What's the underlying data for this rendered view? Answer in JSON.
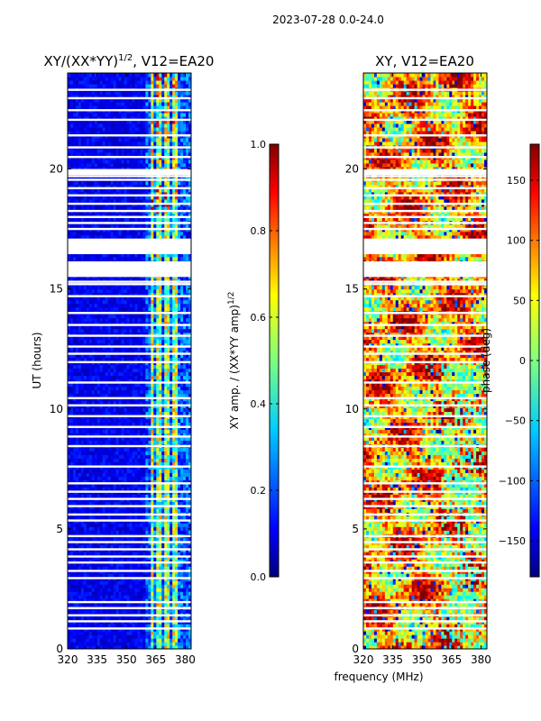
{
  "figure": {
    "suptitle": "2023-07-28 0.0-24.0",
    "xlabel": "frequency (MHz)"
  },
  "chart_data": [
    {
      "type": "heatmap",
      "title_main": "XY/(XX*YY)",
      "title_sup": "1/2",
      "title_rest": ", V12=EA20",
      "xlabel": "",
      "ylabel": "UT (hours)",
      "x_ticks": [
        "320",
        "335",
        "350",
        "365",
        "380"
      ],
      "x_tick_values": [
        320,
        335,
        350,
        365,
        380
      ],
      "y_ticks": [
        "0",
        "5",
        "10",
        "15",
        "20"
      ],
      "y_tick_values": [
        0,
        5,
        10,
        15,
        20
      ],
      "xlim": [
        320,
        383
      ],
      "ylim": [
        0,
        24
      ],
      "colormap": "jet",
      "colorbar": {
        "label_main": "XY amp. / (XX*YY amp)",
        "label_sup": "1/2",
        "range": [
          0.0,
          1.0
        ],
        "ticks": [
          "0.0",
          "0.2",
          "0.4",
          "0.6",
          "0.8",
          "1.0"
        ],
        "tick_values": [
          0.0,
          0.2,
          0.4,
          0.6,
          0.8,
          1.0
        ]
      },
      "gap_rows_ut": [
        0.85,
        1.15,
        1.4,
        1.7,
        1.95,
        2.95,
        3.25,
        3.6,
        3.85,
        4.15,
        4.45,
        4.7,
        5.35,
        5.6,
        5.95,
        6.25,
        6.55,
        6.9,
        7.6,
        8.45,
        8.85,
        9.25,
        9.7,
        10.15,
        10.45,
        11.1,
        11.95,
        12.3,
        12.6,
        13.05,
        13.5,
        14.0,
        14.7,
        15.2,
        15.3,
        17.5,
        17.75,
        18.0,
        18.25,
        18.55,
        18.9,
        19.2,
        19.55,
        19.7,
        20.5,
        20.9,
        21.4,
        22.05,
        22.45,
        22.95,
        23.3
      ],
      "gap_band_ut": [
        [
          15.5,
          16.15
        ],
        [
          16.45,
          17.1
        ],
        [
          19.75,
          20.0
        ]
      ],
      "high_channel_bands_mhz": [
        [
          362,
          364
        ],
        [
          364.8,
          366.2
        ],
        [
          367.2,
          368.3
        ],
        [
          369,
          370.5
        ],
        [
          371.3,
          372.3
        ],
        [
          373.3,
          375.5
        ],
        [
          377,
          378.2
        ]
      ],
      "mean_amplitude_low_band": 0.1,
      "mean_amplitude_high_band": 0.45
    },
    {
      "type": "heatmap",
      "title": "XY, V12=EA20",
      "xlabel": "",
      "ylabel": "",
      "x_ticks": [
        "320",
        "335",
        "350",
        "365",
        "380"
      ],
      "x_tick_values": [
        320,
        335,
        350,
        365,
        380
      ],
      "y_ticks": [
        "0",
        "5",
        "10",
        "15",
        "20"
      ],
      "y_tick_values": [
        0,
        5,
        10,
        15,
        20
      ],
      "xlim": [
        320,
        383
      ],
      "ylim": [
        0,
        24
      ],
      "colormap": "jet",
      "colorbar": {
        "label": "phase (deg)",
        "range": [
          -180,
          180
        ],
        "ticks": [
          "−150",
          "−100",
          "−50",
          "0",
          "50",
          "100",
          "150"
        ],
        "tick_values": [
          -150,
          -100,
          -50,
          0,
          50,
          100,
          150
        ]
      },
      "gap_rows_ut": [
        0.85,
        1.15,
        1.4,
        1.7,
        1.95,
        2.95,
        3.25,
        3.6,
        3.85,
        4.15,
        4.45,
        4.7,
        5.35,
        5.6,
        5.95,
        6.25,
        6.55,
        6.9,
        7.6,
        8.45,
        8.85,
        9.25,
        9.7,
        10.15,
        10.45,
        11.1,
        11.95,
        12.3,
        12.6,
        13.05,
        13.5,
        14.0,
        14.7,
        15.2,
        15.3,
        17.5,
        17.75,
        18.0,
        18.25,
        18.55,
        18.9,
        19.2,
        19.55,
        19.7,
        20.5,
        20.9,
        21.4,
        22.05,
        22.45,
        22.95,
        23.3
      ],
      "gap_band_ut": [
        [
          15.5,
          16.15
        ],
        [
          16.45,
          17.1
        ],
        [
          19.75,
          20.0
        ]
      ],
      "dominant_phase_deg": 120
    }
  ],
  "colors": {
    "jet": [
      "#00007f",
      "#0000ff",
      "#007fff",
      "#00ffff",
      "#7fff7f",
      "#ffff00",
      "#ff7f00",
      "#ff0000",
      "#7f0000"
    ]
  }
}
